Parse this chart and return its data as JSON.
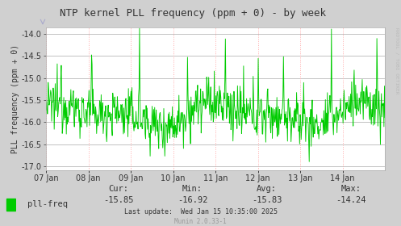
{
  "title": "NTP kernel PLL frequency (ppm + 0) - by week",
  "ylabel": "PLL frequency (ppm + 0)",
  "background_color": "#d0d0d0",
  "plot_bg_color": "#ffffff",
  "line_color": "#00cc00",
  "grid_color_h": "#aaaaaa",
  "grid_color_v": "#ffaaaa",
  "ylim": [
    -17.1,
    -13.85
  ],
  "yticks": [
    -17.0,
    -16.5,
    -16.0,
    -15.5,
    -15.0,
    -14.5,
    -14.0
  ],
  "x_labels": [
    "07 Jan",
    "08 Jan",
    "09 Jan",
    "10 Jan",
    "11 Jan",
    "12 Jan",
    "13 Jan",
    "14 Jan"
  ],
  "cur": "-15.85",
  "min_val": "-16.92",
  "avg": "-15.83",
  "max_val": "-14.24",
  "last_update": "Wed Jan 15 10:35:00 2025",
  "legend_label": "pll-freq",
  "watermark": "RRDTOOL / TOBI OETIKER",
  "munin_version": "Munin 2.0.33-1",
  "title_fontsize": 9,
  "axis_fontsize": 7,
  "legend_fontsize": 7.5,
  "n_points": 672
}
